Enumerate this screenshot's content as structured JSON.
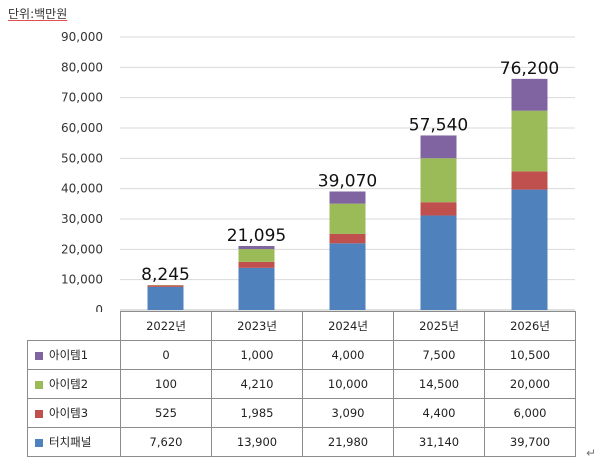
{
  "unit_label": "단위:백만원",
  "return_mark": "↵",
  "chart_data": {
    "type": "bar",
    "stacked": true,
    "categories": [
      "2022년",
      "2023년",
      "2024년",
      "2025년",
      "2026년"
    ],
    "ylim": [
      0,
      90000
    ],
    "yticks": [
      0,
      10000,
      20000,
      30000,
      40000,
      50000,
      60000,
      70000,
      80000,
      90000
    ],
    "ytick_labels": [
      "0",
      "10,000",
      "20,000",
      "30,000",
      "40,000",
      "50,000",
      "60,000",
      "70,000",
      "80,000",
      "90,000"
    ],
    "grid": true,
    "totals": [
      "8,245",
      "21,095",
      "39,070",
      "57,540",
      "76,200"
    ],
    "series": [
      {
        "name": "터치패널",
        "color": "#4f81bd",
        "values": [
          7620,
          13900,
          21980,
          31140,
          39700
        ],
        "labels": [
          "7,620",
          "13,900",
          "21,980",
          "31,140",
          "39,700"
        ]
      },
      {
        "name": "아이템3",
        "color": "#c0504d",
        "values": [
          525,
          1985,
          3090,
          4400,
          6000
        ],
        "labels": [
          "525",
          "1,985",
          "3,090",
          "4,400",
          "6,000"
        ]
      },
      {
        "name": "아이템2",
        "color": "#9bbb59",
        "values": [
          100,
          4210,
          10000,
          14500,
          20000
        ],
        "labels": [
          "100",
          "4,210",
          "10,000",
          "14,500",
          "20,000"
        ]
      },
      {
        "name": "아이템1",
        "color": "#8064a2",
        "values": [
          0,
          1000,
          4000,
          7500,
          10500
        ],
        "labels": [
          "0",
          "1,000",
          "4,000",
          "7,500",
          "10,500"
        ]
      }
    ],
    "table_row_order": [
      "아이템1",
      "아이템2",
      "아이템3",
      "터치패널"
    ]
  }
}
